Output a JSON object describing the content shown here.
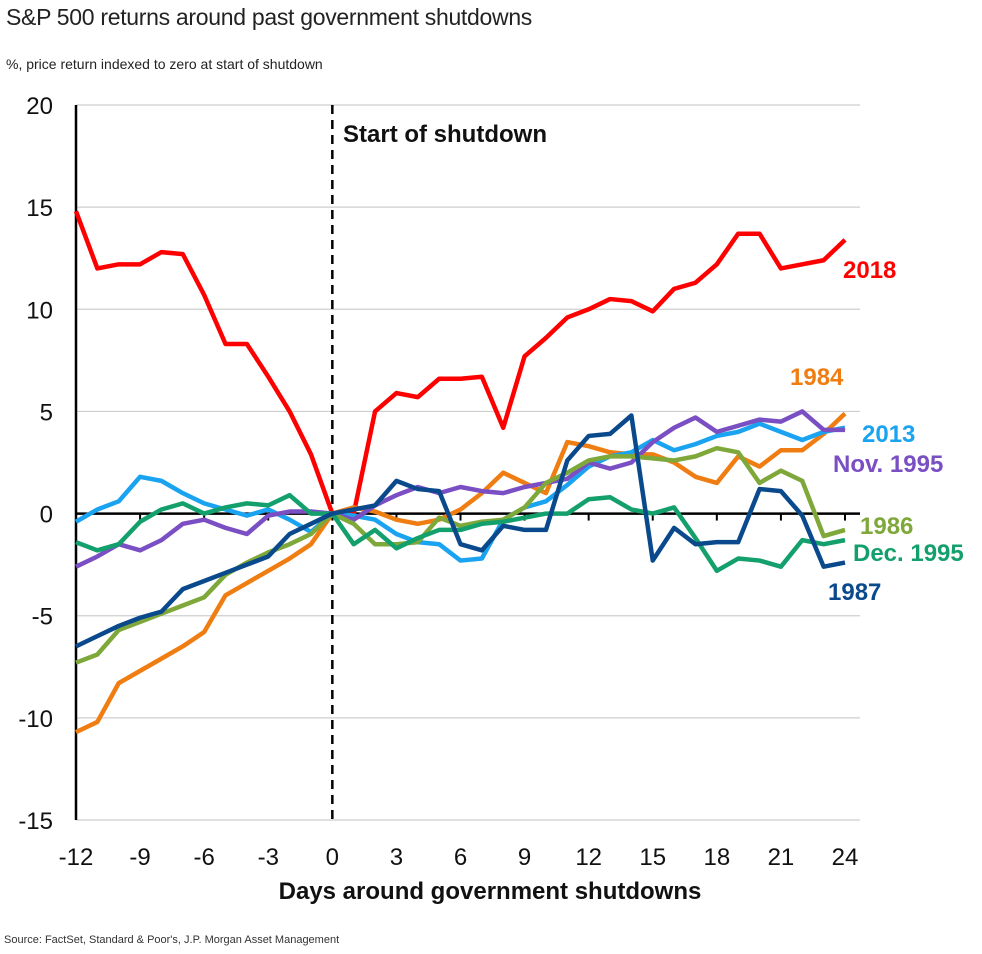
{
  "header": {
    "title": "S&P 500 returns around past government shutdowns",
    "subtitle": "%, price return indexed to zero at start of shutdown"
  },
  "footer": {
    "source": "Source: FactSet, Standard & Poor's, J.P. Morgan Asset Management"
  },
  "chart_data": {
    "type": "line",
    "title": "S&P 500 returns around past government shutdowns",
    "subtitle": "%, price return indexed to zero at start of shutdown",
    "xlabel": "Days around government shutdowns",
    "ylabel": "",
    "xlim": [
      -12,
      24
    ],
    "ylim": [
      -15,
      20
    ],
    "xticks": [
      -12,
      -9,
      -6,
      -3,
      0,
      3,
      6,
      9,
      12,
      15,
      18,
      21,
      24
    ],
    "yticks": [
      20,
      15,
      10,
      5,
      0,
      -5,
      -10,
      -15
    ],
    "grid": "horizontal",
    "annotation": {
      "x": 0,
      "text": "Start of shutdown",
      "style": "dashed-vertical-line"
    },
    "x": [
      -12,
      -11,
      -10,
      -9,
      -8,
      -7,
      -6,
      -5,
      -4,
      -3,
      -2,
      -1,
      0,
      1,
      2,
      3,
      4,
      5,
      6,
      7,
      8,
      9,
      10,
      11,
      12,
      13,
      14,
      15,
      16,
      17,
      18,
      19,
      20,
      21,
      22,
      23,
      24
    ],
    "series": [
      {
        "name": "2018",
        "color": "#ff0000",
        "label_pos": "right-below",
        "values": [
          14.8,
          12.0,
          12.2,
          12.2,
          12.8,
          12.7,
          10.7,
          8.3,
          8.3,
          6.7,
          5.0,
          2.9,
          0.0,
          0.0,
          5.0,
          5.9,
          5.7,
          6.6,
          6.6,
          6.7,
          4.2,
          7.7,
          8.6,
          9.6,
          10.0,
          10.5,
          10.4,
          9.9,
          11.0,
          11.3,
          12.2,
          13.7,
          13.7,
          12.0,
          12.2,
          12.4,
          13.4
        ]
      },
      {
        "name": "1984",
        "color": "#f07d12",
        "label_pos": "above",
        "values": [
          -10.7,
          -10.2,
          -8.3,
          -7.7,
          -7.1,
          -6.5,
          -5.8,
          -4.0,
          -3.4,
          -2.8,
          -2.2,
          -1.5,
          0.0,
          0.3,
          0.1,
          -0.3,
          -0.5,
          -0.3,
          0.2,
          1.0,
          2.0,
          1.5,
          1.0,
          3.5,
          3.3,
          3.0,
          2.9,
          2.9,
          2.5,
          1.8,
          1.5,
          2.8,
          2.3,
          3.1,
          3.1,
          3.9,
          4.9
        ]
      },
      {
        "name": "2013",
        "color": "#1aa3f0",
        "label_pos": "right",
        "values": [
          -0.4,
          0.2,
          0.6,
          1.8,
          1.6,
          1.0,
          0.5,
          0.2,
          -0.1,
          0.2,
          -0.3,
          -0.9,
          0.0,
          -0.1,
          -0.3,
          -1.0,
          -1.4,
          -1.5,
          -2.3,
          -2.2,
          -0.3,
          0.3,
          0.6,
          1.4,
          2.3,
          2.8,
          3.0,
          3.6,
          3.1,
          3.4,
          3.8,
          4.0,
          4.4,
          4.0,
          3.6,
          4.0,
          4.2
        ]
      },
      {
        "name": "Nov. 1995",
        "color": "#7b4fc4",
        "label_pos": "right-below",
        "values": [
          -2.6,
          -2.1,
          -1.5,
          -1.8,
          -1.3,
          -0.5,
          -0.3,
          -0.7,
          -1.0,
          -0.1,
          0.1,
          0.1,
          0.0,
          -0.3,
          0.4,
          0.9,
          1.3,
          1.0,
          1.3,
          1.1,
          1.0,
          1.3,
          1.5,
          1.7,
          2.5,
          2.2,
          2.5,
          3.5,
          4.2,
          4.7,
          4.0,
          4.3,
          4.6,
          4.5,
          5.0,
          4.1,
          4.1
        ]
      },
      {
        "name": "1986",
        "color": "#7fa83a",
        "label_pos": "right",
        "values": [
          -7.3,
          -6.9,
          -5.7,
          -5.3,
          -4.9,
          -4.5,
          -4.1,
          -3.0,
          -2.4,
          -1.9,
          -1.5,
          -1.0,
          0.0,
          -0.5,
          -1.5,
          -1.5,
          -1.4,
          -0.2,
          -0.6,
          -0.4,
          -0.3,
          0.3,
          1.5,
          2.0,
          2.6,
          2.8,
          2.8,
          2.7,
          2.6,
          2.8,
          3.2,
          3.0,
          1.5,
          2.1,
          1.6,
          -1.1,
          -0.8
        ]
      },
      {
        "name": "Dec. 1995",
        "color": "#13a06c",
        "label_pos": "right",
        "values": [
          -1.4,
          -1.8,
          -1.5,
          -0.4,
          0.2,
          0.5,
          0.0,
          0.3,
          0.5,
          0.4,
          0.9,
          0.0,
          0.0,
          -1.5,
          -0.8,
          -1.7,
          -1.2,
          -0.8,
          -0.8,
          -0.5,
          -0.4,
          -0.2,
          0.0,
          0.0,
          0.7,
          0.8,
          0.2,
          0.0,
          0.3,
          -1.2,
          -2.8,
          -2.2,
          -2.3,
          -2.6,
          -1.3,
          -1.5,
          -1.3
        ]
      },
      {
        "name": "1987",
        "color": "#0a4a8c",
        "label_pos": "below",
        "values": [
          -6.5,
          -6.0,
          -5.5,
          -5.1,
          -4.8,
          -3.7,
          -3.3,
          -2.9,
          -2.5,
          -2.1,
          -1.0,
          -0.5,
          0.0,
          0.2,
          0.4,
          1.6,
          1.2,
          1.1,
          -1.5,
          -1.8,
          -0.6,
          -0.8,
          -0.8,
          2.6,
          3.8,
          3.9,
          4.8,
          -2.3,
          -0.7,
          -1.5,
          -1.4,
          -1.4,
          1.2,
          1.1,
          -0.1,
          -2.6,
          -2.4
        ]
      }
    ]
  }
}
